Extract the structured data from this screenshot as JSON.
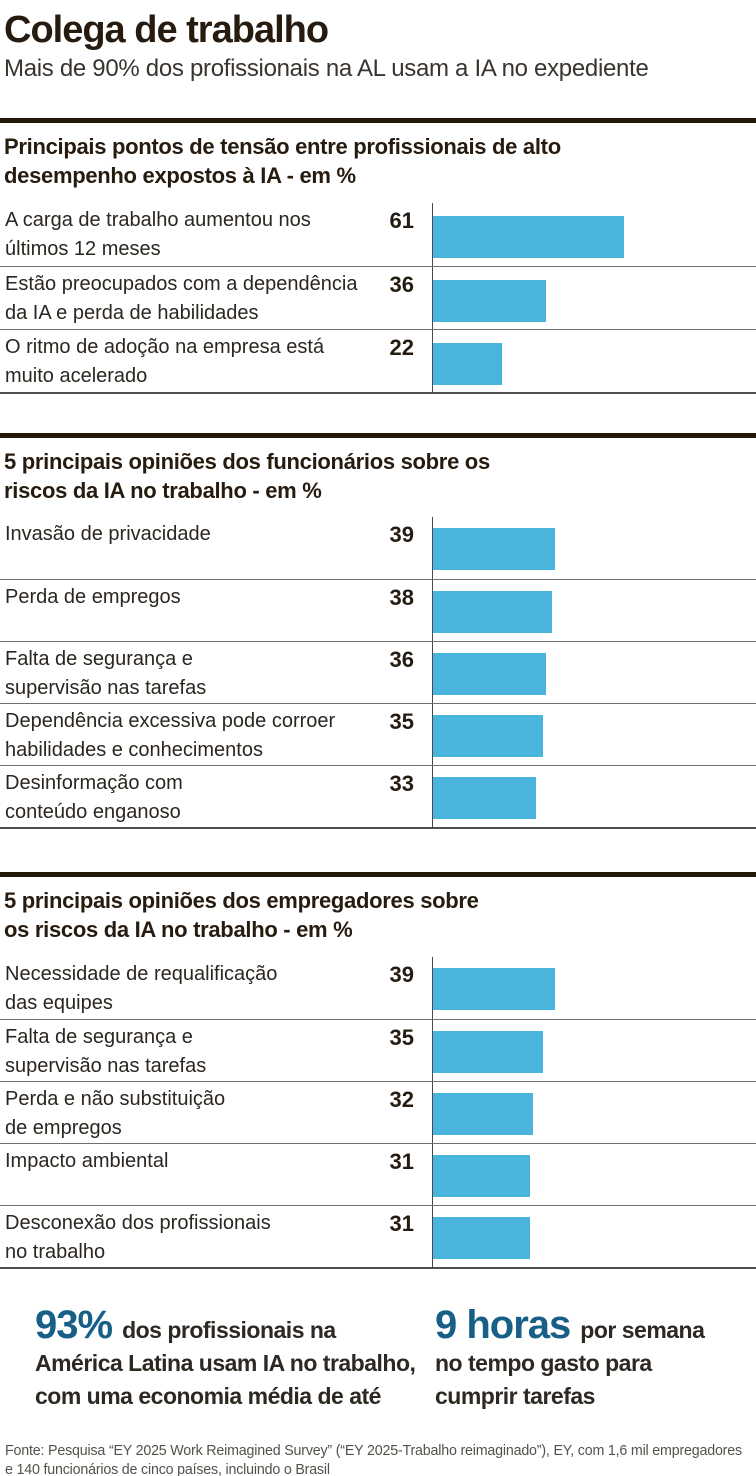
{
  "header": {
    "title": "Colega de trabalho",
    "subtitle": "Mais de 90% dos profissionais na AL usam a IA no expediente"
  },
  "chart_data": [
    {
      "type": "bar",
      "orientation": "horizontal",
      "unit": "%",
      "title": "Principais pontos de tensão entre profissionais de alto desempenho expostos à IA - em %",
      "title_lines": [
        "Principais pontos de tensão entre profissionais de alto",
        "desempenho expostos à IA - em %"
      ],
      "categories": [
        "A carga de trabalho aumentou nos últimos 12 meses",
        "Estão preocupados com a dependência da IA e perda de habilidades",
        "O ritmo de adoção na empresa está muito acelerado"
      ],
      "categories_lines": [
        [
          "A carga de trabalho aumentou nos",
          "últimos 12 meses"
        ],
        [
          "Estão preocupados com a dependência",
          "da IA e perda de habilidades"
        ],
        [
          "O ritmo de adoção na empresa está",
          "muito acelerado"
        ]
      ],
      "values": [
        61,
        36,
        22
      ],
      "xlim": [
        0,
        100
      ],
      "grid": false,
      "legend": false
    },
    {
      "type": "bar",
      "orientation": "horizontal",
      "unit": "%",
      "title": "5 principais opiniões dos funcionários sobre os riscos da IA no trabalho - em %",
      "title_lines": [
        "5 principais opiniões dos funcionários sobre os",
        "riscos da IA no trabalho - em %"
      ],
      "categories": [
        "Invasão de privacidade",
        "Perda de empregos",
        "Falta de segurança e supervisão nas tarefas",
        "Dependência excessiva pode corroer habilidades e conhecimentos",
        "Desinformação com conteúdo enganoso"
      ],
      "categories_lines": [
        [
          "Invasão de privacidade"
        ],
        [
          "Perda de empregos"
        ],
        [
          "Falta de segurança e",
          "supervisão nas tarefas"
        ],
        [
          "Dependência excessiva pode corroer",
          "habilidades e conhecimentos"
        ],
        [
          "Desinformação com",
          "conteúdo enganoso"
        ]
      ],
      "values": [
        39,
        38,
        36,
        35,
        33
      ],
      "xlim": [
        0,
        100
      ],
      "grid": false,
      "legend": false
    },
    {
      "type": "bar",
      "orientation": "horizontal",
      "unit": "%",
      "title": "5 principais opiniões dos empregadores sobre os riscos da IA no trabalho - em %",
      "title_lines": [
        "5 principais opiniões dos empregadores sobre",
        "os riscos da IA no trabalho - em %"
      ],
      "categories": [
        "Necessidade de requalificação das equipes",
        "Falta de segurança e supervisão nas tarefas",
        "Perda e não substituição de empregos",
        "Impacto ambiental",
        "Desconexão dos profissionais no trabalho"
      ],
      "categories_lines": [
        [
          "Necessidade de requalificação",
          "das equipes"
        ],
        [
          "Falta de segurança e",
          "supervisão nas tarefas"
        ],
        [
          "Perda e não substituição",
          "de empregos"
        ],
        [
          "Impacto ambiental"
        ],
        [
          "Desconexão dos profissionais",
          "no trabalho"
        ]
      ],
      "values": [
        39,
        35,
        32,
        31,
        31
      ],
      "xlim": [
        0,
        100
      ],
      "grid": false,
      "legend": false
    }
  ],
  "stats": [
    {
      "value": "93%",
      "lines": [
        "dos profissionais na",
        "América Latina usam IA no trabalho,",
        "com uma economia média de até"
      ]
    },
    {
      "value": "9 horas",
      "lines": [
        "por semana",
        "no tempo gasto para",
        "cumprir tarefas"
      ]
    }
  ],
  "footer": {
    "lines": [
      "Fonte: Pesquisa “EY 2025 Work Reimagined Survey” (“EY 2025-Trabalho reimaginado”), EY, com 1,6 mil empregadores",
      "e 140 funcionários de cinco países, incluindo o Brasil"
    ]
  },
  "colors": {
    "bar": "#49b5dc",
    "accent": "#175f87",
    "ink": "#261b0e",
    "rule": "#241709",
    "row_separator": "#6f6f6f",
    "axis": "#4a4a4a",
    "footer_text": "#55514b"
  }
}
